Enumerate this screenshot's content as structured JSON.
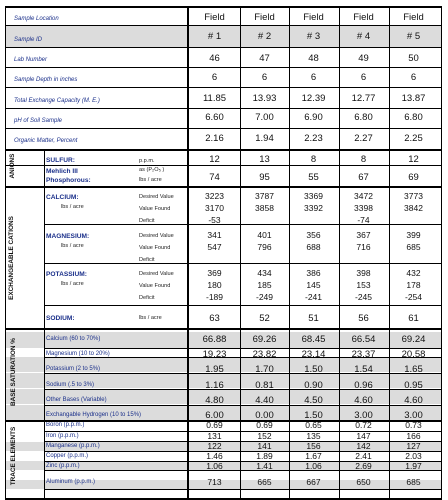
{
  "header": {
    "sample_location_label": "Sample Location",
    "sample_id_label": "Sample ID",
    "fields": [
      "Field",
      "Field",
      "Field",
      "Field",
      "Field"
    ],
    "ids": [
      "# 1",
      "# 2",
      "# 3",
      "# 4",
      "# 5"
    ]
  },
  "rows": {
    "lab_number": {
      "label": "Lab Number",
      "values": [
        "46",
        "47",
        "48",
        "49",
        "50"
      ]
    },
    "sample_depth": {
      "label": "Sample Depth in inches",
      "values": [
        "6",
        "6",
        "6",
        "6",
        "6"
      ]
    },
    "tec": {
      "label": "Total Exchange Capacity (M. E.)",
      "values": [
        "11.85",
        "13.93",
        "12.39",
        "12.77",
        "13.87"
      ]
    },
    "ph": {
      "label": "pH of Soil Sample",
      "values": [
        "6.60",
        "7.00",
        "6.90",
        "6.80",
        "6.80"
      ]
    },
    "om": {
      "label": "Organic Matter, Percent",
      "values": [
        "2.16",
        "1.94",
        "2.23",
        "2.27",
        "2.25"
      ]
    }
  },
  "anions": {
    "title": "ANIONS",
    "sulfur": {
      "label": "SULFUR:",
      "unit": "p.p.m.",
      "values": [
        "12",
        "13",
        "8",
        "8",
        "12"
      ]
    },
    "phosphorus": {
      "label_line1": "Mehlich III",
      "label_line2": "Phosphorous:",
      "unit_line1": "as (P₂O₅ )",
      "unit_line2": "lbs / acre",
      "values": [
        "74",
        "95",
        "55",
        "67",
        "69"
      ]
    }
  },
  "cations": {
    "title": "EXCHANGEABLE CATIONS",
    "calcium": {
      "label": "CALCIUM:",
      "unit": "lbs / acre",
      "desired_label": "Desired Value",
      "found_label": "Value Found",
      "deficit_label": "Deficit",
      "desired": [
        "3223",
        "3787",
        "3369",
        "3472",
        "3773"
      ],
      "found": [
        "3170",
        "3858",
        "3392",
        "3398",
        "3842"
      ],
      "deficit": [
        "-53",
        "",
        "",
        "-74",
        ""
      ]
    },
    "magnesium": {
      "label": "MAGNESIUM:",
      "unit": "lbs / acre",
      "desired_label": "Desired Value",
      "found_label": "Value Found",
      "deficit_label": "Deficit",
      "desired": [
        "341",
        "401",
        "356",
        "367",
        "399"
      ],
      "found": [
        "547",
        "796",
        "688",
        "716",
        "685"
      ],
      "deficit": [
        "",
        "",
        "",
        "",
        ""
      ]
    },
    "potassium": {
      "label": "POTASSIUM:",
      "unit": "lbs / acre",
      "desired_label": "Desired Value",
      "found_label": "Value Found",
      "deficit_label": "Deficit",
      "desired": [
        "369",
        "434",
        "386",
        "398",
        "432"
      ],
      "found": [
        "180",
        "185",
        "145",
        "153",
        "178"
      ],
      "deficit": [
        "-189",
        "-249",
        "-241",
        "-245",
        "-254"
      ]
    },
    "sodium": {
      "label": "SODIUM:",
      "unit": "lbs / acre",
      "values": [
        "63",
        "52",
        "51",
        "56",
        "61"
      ]
    }
  },
  "base_saturation": {
    "title": "BASE SATURATION %",
    "rows": [
      {
        "label": "Calcium (60 to 70%)",
        "values": [
          "66.88",
          "69.26",
          "68.45",
          "66.54",
          "69.24"
        ]
      },
      {
        "label": "Magnesium (10 to 20%)",
        "values": [
          "19.23",
          "23.82",
          "23.14",
          "23.37",
          "20.58"
        ]
      },
      {
        "label": "Potassium (2 to 5%)",
        "values": [
          "1.95",
          "1.70",
          "1.50",
          "1.54",
          "1.65"
        ]
      },
      {
        "label": "Sodium (.5 to 3%)",
        "values": [
          "1.16",
          "0.81",
          "0.90",
          "0.96",
          "0.95"
        ]
      },
      {
        "label": "Other Bases (Variable)",
        "values": [
          "4.80",
          "4.40",
          "4.50",
          "4.60",
          "4.60"
        ]
      },
      {
        "label": "Exchangable Hydrogen (10 to 15%)",
        "values": [
          "6.00",
          "0.00",
          "1.50",
          "3.00",
          "3.00"
        ]
      }
    ]
  },
  "trace": {
    "title": "TRACE ELEMENTS",
    "rows": [
      {
        "label": "Boron (p.p.m.)",
        "values": [
          "0.69",
          "0.69",
          "0.65",
          "0.72",
          "0.73"
        ]
      },
      {
        "label": "Iron (p.p.m.)",
        "values": [
          "131",
          "152",
          "135",
          "147",
          "166"
        ]
      },
      {
        "label": "Manganese (p.p.m.)",
        "values": [
          "122",
          "141",
          "156",
          "142",
          "127"
        ]
      },
      {
        "label": "Copper (p.p.m.)",
        "values": [
          "1.46",
          "1.89",
          "1.67",
          "2.41",
          "2.03"
        ]
      },
      {
        "label": "Zinc (p.p.m.)",
        "values": [
          "1.06",
          "1.41",
          "1.06",
          "2.69",
          "1.97"
        ]
      },
      {
        "label": "Aluminum (p.p.m.)",
        "values": [
          "713",
          "665",
          "667",
          "650",
          "685"
        ]
      }
    ]
  },
  "colors": {
    "label_blue": "#1a2f8a",
    "shade": "#dcdcdc",
    "rule": "#000000"
  }
}
